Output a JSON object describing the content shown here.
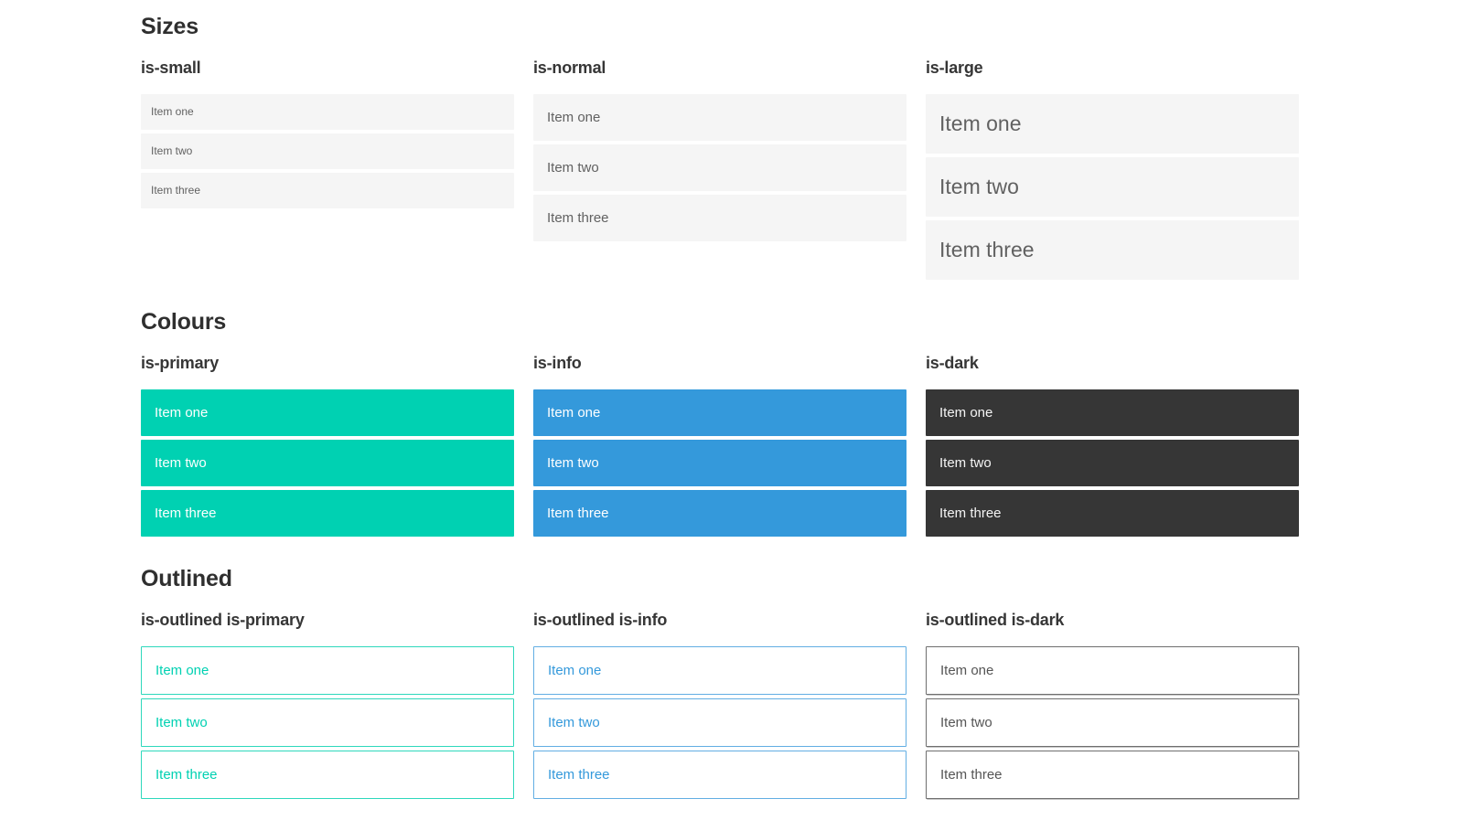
{
  "theme": {
    "primary": "#00d1b2",
    "info": "#3499db",
    "dark": "#363636",
    "light": "#f5f5f5",
    "primary-outline": "#2ed8bc",
    "info-outline": "#62aee3",
    "dark-outline": "#6f6f6f"
  },
  "sections": [
    {
      "title": "Sizes",
      "groups": [
        {
          "label": "is-small",
          "variant": "small",
          "items": [
            "Item one",
            "Item two",
            "Item three"
          ]
        },
        {
          "label": "is-normal",
          "variant": "normal",
          "items": [
            "Item one",
            "Item two",
            "Item three"
          ]
        },
        {
          "label": "is-large",
          "variant": "large",
          "items": [
            "Item one",
            "Item two",
            "Item three"
          ]
        }
      ]
    },
    {
      "title": "Colours",
      "groups": [
        {
          "label": "is-primary",
          "variant": "primary",
          "items": [
            "Item one",
            "Item two",
            "Item three"
          ]
        },
        {
          "label": "is-info",
          "variant": "info",
          "items": [
            "Item one",
            "Item two",
            "Item three"
          ]
        },
        {
          "label": "is-dark",
          "variant": "dark",
          "items": [
            "Item one",
            "Item two",
            "Item three"
          ]
        }
      ]
    },
    {
      "title": "Outlined",
      "groups": [
        {
          "label": "is-outlined is-primary",
          "variant": "outlined-primary",
          "items": [
            "Item one",
            "Item two",
            "Item three"
          ]
        },
        {
          "label": "is-outlined is-info",
          "variant": "outlined-info",
          "items": [
            "Item one",
            "Item two",
            "Item three"
          ]
        },
        {
          "label": "is-outlined is-dark",
          "variant": "outlined-dark",
          "items": [
            "Item one",
            "Item two",
            "Item three"
          ]
        }
      ]
    }
  ]
}
